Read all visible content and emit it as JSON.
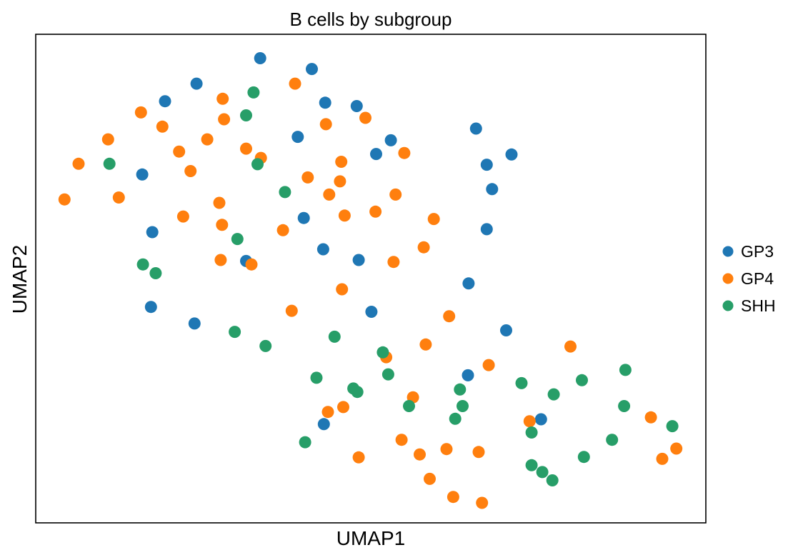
{
  "chart_data": {
    "type": "scatter",
    "title": "B cells by subgroup",
    "xlabel": "UMAP1",
    "ylabel": "UMAP2",
    "xlim": [
      0,
      1
    ],
    "ylim": [
      0,
      1
    ],
    "grid": false,
    "ticks": false,
    "legend_position": "right",
    "series": [
      {
        "name": "GP3",
        "color": "#1f77b4",
        "points": [
          [
            0.335,
            0.951
          ],
          [
            0.412,
            0.929
          ],
          [
            0.24,
            0.899
          ],
          [
            0.193,
            0.863
          ],
          [
            0.432,
            0.86
          ],
          [
            0.479,
            0.853
          ],
          [
            0.657,
            0.807
          ],
          [
            0.391,
            0.79
          ],
          [
            0.53,
            0.783
          ],
          [
            0.508,
            0.755
          ],
          [
            0.71,
            0.754
          ],
          [
            0.673,
            0.733
          ],
          [
            0.159,
            0.713
          ],
          [
            0.681,
            0.683
          ],
          [
            0.4,
            0.624
          ],
          [
            0.174,
            0.595
          ],
          [
            0.673,
            0.601
          ],
          [
            0.429,
            0.56
          ],
          [
            0.314,
            0.536
          ],
          [
            0.482,
            0.538
          ],
          [
            0.646,
            0.49
          ],
          [
            0.172,
            0.442
          ],
          [
            0.501,
            0.432
          ],
          [
            0.237,
            0.408
          ],
          [
            0.702,
            0.394
          ],
          [
            0.645,
            0.302
          ],
          [
            0.754,
            0.212
          ],
          [
            0.43,
            0.202
          ]
        ]
      },
      {
        "name": "GP4",
        "color": "#ff7f0e",
        "points": [
          [
            0.387,
            0.899
          ],
          [
            0.279,
            0.868
          ],
          [
            0.157,
            0.84
          ],
          [
            0.281,
            0.826
          ],
          [
            0.492,
            0.829
          ],
          [
            0.189,
            0.811
          ],
          [
            0.433,
            0.816
          ],
          [
            0.108,
            0.785
          ],
          [
            0.256,
            0.785
          ],
          [
            0.314,
            0.766
          ],
          [
            0.214,
            0.76
          ],
          [
            0.55,
            0.757
          ],
          [
            0.336,
            0.747
          ],
          [
            0.064,
            0.735
          ],
          [
            0.456,
            0.739
          ],
          [
            0.231,
            0.72
          ],
          [
            0.406,
            0.707
          ],
          [
            0.454,
            0.699
          ],
          [
            0.043,
            0.662
          ],
          [
            0.124,
            0.666
          ],
          [
            0.438,
            0.672
          ],
          [
            0.537,
            0.672
          ],
          [
            0.274,
            0.655
          ],
          [
            0.507,
            0.637
          ],
          [
            0.22,
            0.627
          ],
          [
            0.461,
            0.629
          ],
          [
            0.594,
            0.622
          ],
          [
            0.278,
            0.61
          ],
          [
            0.369,
            0.599
          ],
          [
            0.579,
            0.564
          ],
          [
            0.276,
            0.538
          ],
          [
            0.322,
            0.529
          ],
          [
            0.534,
            0.534
          ],
          [
            0.457,
            0.478
          ],
          [
            0.382,
            0.434
          ],
          [
            0.617,
            0.423
          ],
          [
            0.582,
            0.365
          ],
          [
            0.798,
            0.361
          ],
          [
            0.523,
            0.339
          ],
          [
            0.676,
            0.323
          ],
          [
            0.563,
            0.257
          ],
          [
            0.436,
            0.227
          ],
          [
            0.459,
            0.237
          ],
          [
            0.737,
            0.208
          ],
          [
            0.918,
            0.216
          ],
          [
            0.546,
            0.17
          ],
          [
            0.613,
            0.151
          ],
          [
            0.573,
            0.14
          ],
          [
            0.661,
            0.145
          ],
          [
            0.956,
            0.152
          ],
          [
            0.482,
            0.134
          ],
          [
            0.935,
            0.131
          ],
          [
            0.588,
            0.09
          ],
          [
            0.623,
            0.053
          ],
          [
            0.666,
            0.041
          ]
        ]
      },
      {
        "name": "SHH",
        "color": "#279e68",
        "points": [
          [
            0.325,
            0.881
          ],
          [
            0.314,
            0.834
          ],
          [
            0.11,
            0.735
          ],
          [
            0.331,
            0.734
          ],
          [
            0.372,
            0.677
          ],
          [
            0.301,
            0.581
          ],
          [
            0.16,
            0.529
          ],
          [
            0.179,
            0.511
          ],
          [
            0.297,
            0.391
          ],
          [
            0.343,
            0.362
          ],
          [
            0.446,
            0.381
          ],
          [
            0.518,
            0.349
          ],
          [
            0.526,
            0.304
          ],
          [
            0.419,
            0.297
          ],
          [
            0.474,
            0.275
          ],
          [
            0.48,
            0.268
          ],
          [
            0.633,
            0.273
          ],
          [
            0.725,
            0.286
          ],
          [
            0.815,
            0.292
          ],
          [
            0.88,
            0.313
          ],
          [
            0.773,
            0.263
          ],
          [
            0.557,
            0.239
          ],
          [
            0.637,
            0.239
          ],
          [
            0.626,
            0.213
          ],
          [
            0.878,
            0.239
          ],
          [
            0.74,
            0.185
          ],
          [
            0.95,
            0.198
          ],
          [
            0.86,
            0.17
          ],
          [
            0.402,
            0.165
          ],
          [
            0.818,
            0.135
          ],
          [
            0.74,
            0.118
          ],
          [
            0.756,
            0.104
          ],
          [
            0.771,
            0.087
          ]
        ]
      }
    ]
  }
}
